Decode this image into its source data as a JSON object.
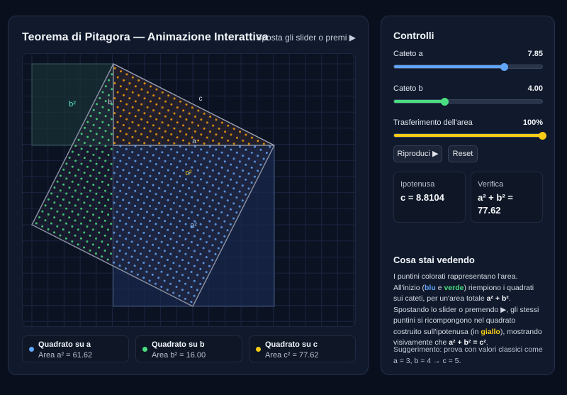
{
  "main": {
    "title": "Teorema di Pitagora — Animazione Interattiva",
    "hint": "Sposta gli slider o premi ▶",
    "canvas_labels": {
      "b_sq": "b²",
      "b": "b",
      "c": "c",
      "a": "a",
      "c_sq": "c²",
      "a_sq": "a²"
    }
  },
  "cards": [
    {
      "title": "Quadrato su a",
      "area": "Area a² = 61.62",
      "color": "#60a5fa"
    },
    {
      "title": "Quadrato su b",
      "area": "Area b² = 16.00",
      "color": "#4ade80"
    },
    {
      "title": "Quadrato su c",
      "area": "Area c² = 77.62",
      "color": "#facc15"
    }
  ],
  "controls": {
    "title": "Controlli",
    "sliders": [
      {
        "label": "Cateto a",
        "value": "7.85",
        "fraction": 0.74,
        "color": "#60a5fa"
      },
      {
        "label": "Cateto b",
        "value": "4.00",
        "fraction": 0.34,
        "color": "#4ade80"
      },
      {
        "label": "Trasferimento dell'area",
        "value": "100%",
        "fraction": 1.0,
        "color": "#facc15"
      }
    ],
    "play_label": "Riproduci ▶",
    "reset_label": "Reset",
    "hypotenuse_label": "Ipotenusa",
    "hypotenuse_value": "c = 8.8104",
    "verify_label": "Verifica",
    "verify_value_1": "a² + b² =",
    "verify_value_2": "77.62"
  },
  "explain": {
    "title": "Cosa stai vedendo",
    "p1_a": "I puntini colorati rappresentano l'area. All'inizio (",
    "blu": "blu",
    "e": " e ",
    "verde": "verde",
    "p1_b": ") riempiono i quadrati sui cateti, per un'area totale ",
    "formula1": "a² + b²",
    "p1_c": ". Spostando lo slider o premendo ▶, gli stessi puntini si ricompongono nel quadrato costruito sull'ipotenusa (in ",
    "giallo": "giallo",
    "p1_d": "), mostrando visivamente che ",
    "formula2": "a² + b² = c²",
    "p1_e": ".",
    "tip": "Suggerimento: prova con valori classici come a = 3, b = 4 → c = 5."
  }
}
